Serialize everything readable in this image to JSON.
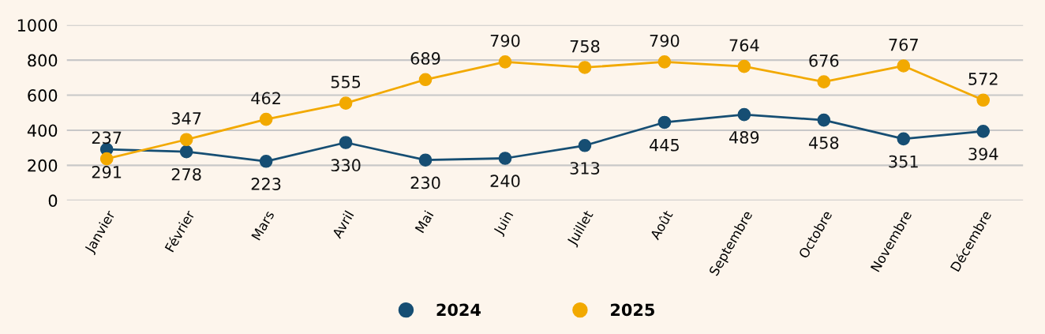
{
  "chart_data": {
    "type": "line",
    "categories": [
      "Janvier",
      "Février",
      "Mars",
      "Avril",
      "Mai",
      "Juin",
      "Juillet",
      "Août",
      "Septembre",
      "Octobre",
      "Novembre",
      "Décembre"
    ],
    "series": [
      {
        "name": "2024",
        "color": "#164e73",
        "values": [
          291,
          278,
          223,
          330,
          230,
          240,
          313,
          445,
          489,
          458,
          351,
          394
        ]
      },
      {
        "name": "2025",
        "color": "#f2a900",
        "values": [
          237,
          347,
          462,
          555,
          689,
          790,
          758,
          790,
          764,
          676,
          767,
          572
        ]
      }
    ],
    "ylim": [
      0,
      1000
    ],
    "yticks": [
      0,
      200,
      400,
      600,
      800,
      1000
    ],
    "grid": "y",
    "legend": "bottom",
    "marker": "circle",
    "line_style": "solid",
    "data_labels": true
  }
}
